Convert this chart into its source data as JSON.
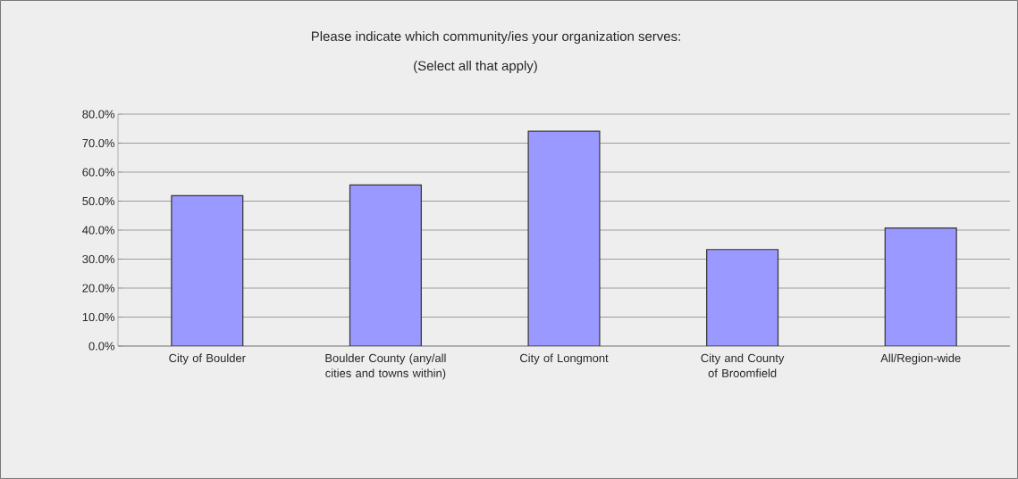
{
  "chart_data": {
    "type": "bar",
    "title": "Please indicate which community/ies your organization serves:",
    "subtitle": "(Select all that apply)",
    "categories": [
      "City of Boulder",
      "Boulder County (any/all cities and towns within)",
      "City of Longmont",
      "City and County of Broomfield",
      "All/Region-wide"
    ],
    "values": [
      51.9,
      55.6,
      74.1,
      33.3,
      40.7
    ],
    "color": "#9999ff",
    "ylim": [
      0,
      80
    ],
    "yticks": [
      {
        "value": 0,
        "label": "0.0%"
      },
      {
        "value": 10,
        "label": "10.0%"
      },
      {
        "value": 20,
        "label": "20.0%"
      },
      {
        "value": 30,
        "label": "30.0%"
      },
      {
        "value": 40,
        "label": "40.0%"
      },
      {
        "value": 50,
        "label": "50.0%"
      },
      {
        "value": 60,
        "label": "60.0%"
      },
      {
        "value": 70,
        "label": "70.0%"
      },
      {
        "value": 80,
        "label": "80.0%"
      }
    ],
    "grid": "y"
  }
}
